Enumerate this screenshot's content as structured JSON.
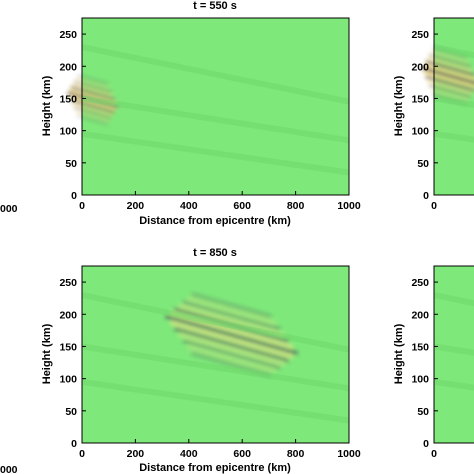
{
  "chart_data": [
    {
      "type": "heatmap",
      "title": "t = 550  s",
      "xlabel": "Distance from epicentre (km)",
      "ylabel": "Height (km)",
      "xlim": [
        0,
        1000
      ],
      "ylim": [
        0,
        275
      ],
      "xticks": [
        "0",
        "200",
        "400",
        "600",
        "800",
        "1000"
      ],
      "yticks": [
        "0",
        "50",
        "100",
        "150",
        "200",
        "250"
      ],
      "background_color": "#7ee87a",
      "wave_packet": {
        "x_center": 40,
        "y_center": 148,
        "x_extent": 180,
        "y_extent": 60,
        "strength": 1.0
      }
    },
    {
      "type": "heatmap",
      "title": "",
      "xlabel": "",
      "ylabel": "Height (km)",
      "xlim": [
        0,
        1000
      ],
      "ylim": [
        0,
        275
      ],
      "xticks": [
        "0"
      ],
      "yticks": [
        "0",
        "50",
        "100",
        "150",
        "200",
        "250"
      ],
      "background_color": "#7ee87a",
      "wave_packet": {
        "x_center": 60,
        "y_center": 185,
        "x_extent": 200,
        "y_extent": 70,
        "strength": 1.0
      }
    },
    {
      "type": "heatmap",
      "title": "t = 850  s",
      "xlabel": "Distance from epicentre (km)",
      "ylabel": "Height (km)",
      "xlim": [
        0,
        1000
      ],
      "ylim": [
        0,
        275
      ],
      "xticks": [
        "0",
        "200",
        "400",
        "600",
        "800",
        "1000"
      ],
      "yticks": [
        "0",
        "50",
        "100",
        "150",
        "200",
        "250"
      ],
      "background_color": "#7ee87a",
      "wave_packet": {
        "x_center": 560,
        "y_center": 168,
        "x_extent": 480,
        "y_extent": 90,
        "strength": 0.55
      }
    },
    {
      "type": "heatmap",
      "title": "",
      "xlabel": "",
      "ylabel": "Height (km)",
      "xlim": [
        0,
        1000
      ],
      "ylim": [
        0,
        275
      ],
      "xticks": [
        "0"
      ],
      "yticks": [
        "0",
        "50",
        "100",
        "150",
        "200",
        "250"
      ],
      "background_color": "#7ee87a",
      "wave_packet": null
    }
  ],
  "left_edge_ticks": [
    "000",
    "000"
  ]
}
